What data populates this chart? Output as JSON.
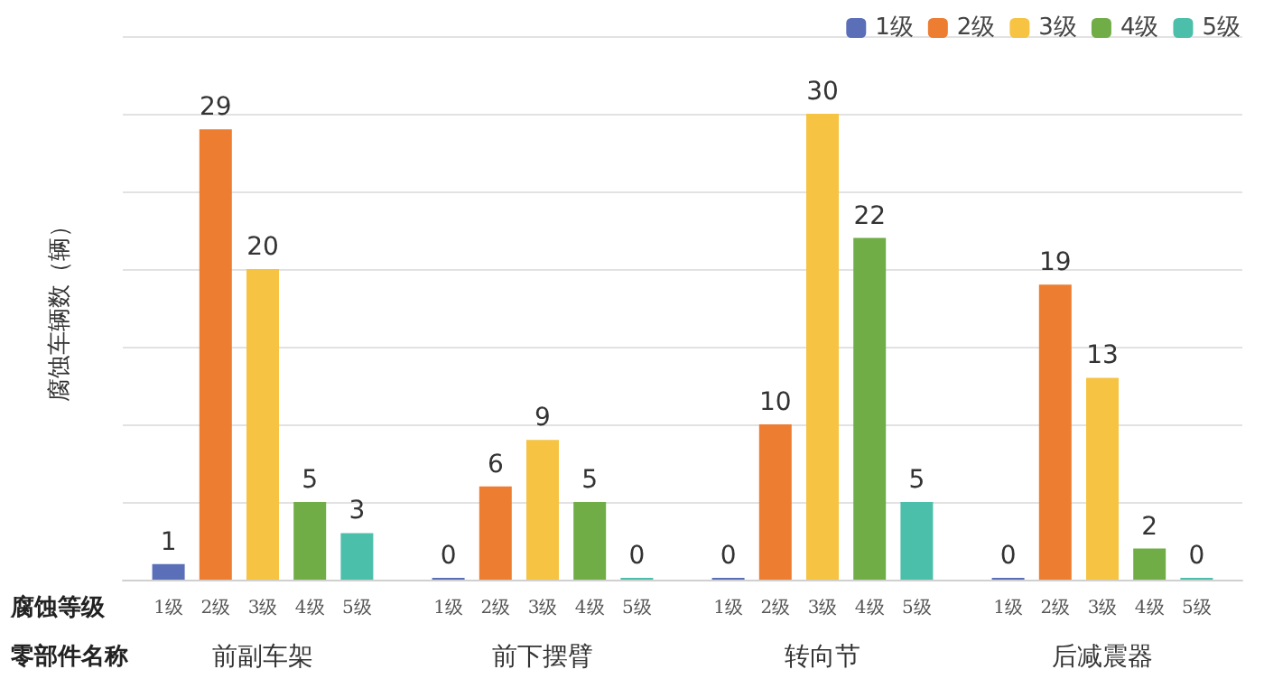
{
  "chart_data": {
    "type": "bar",
    "categories": [
      "前副车架",
      "前下摆臂",
      "转向节",
      "后减震器"
    ],
    "series": [
      {
        "name": "1级",
        "color": "#5b6fb8",
        "values": [
          1,
          0,
          0,
          0
        ]
      },
      {
        "name": "2级",
        "color": "#ed7d31",
        "values": [
          29,
          6,
          10,
          19
        ]
      },
      {
        "name": "3级",
        "color": "#f6c342",
        "values": [
          20,
          9,
          30,
          13
        ]
      },
      {
        "name": "4级",
        "color": "#70ad47",
        "values": [
          5,
          5,
          22,
          2
        ]
      },
      {
        "name": "5级",
        "color": "#4bbfaa",
        "values": [
          3,
          0,
          5,
          0
        ]
      }
    ],
    "ylabel": "腐蚀车辆数（辆）",
    "xlabel": "零部件名称",
    "annotations": [
      "腐蚀等级"
    ],
    "ylim": [
      0,
      35
    ],
    "yticks": [
      {
        "value": 0,
        "label": null
      },
      {
        "value": 5,
        "label": null
      },
      {
        "value": 10,
        "label": null
      },
      {
        "value": 15,
        "label": null
      },
      {
        "value": 20,
        "label": null
      },
      {
        "value": 25,
        "label": null
      },
      {
        "value": 30,
        "label": null
      },
      {
        "value": 35,
        "label": null
      }
    ],
    "tick_labels": "x",
    "grid": "y",
    "legend": "top right",
    "data_labels": true
  }
}
